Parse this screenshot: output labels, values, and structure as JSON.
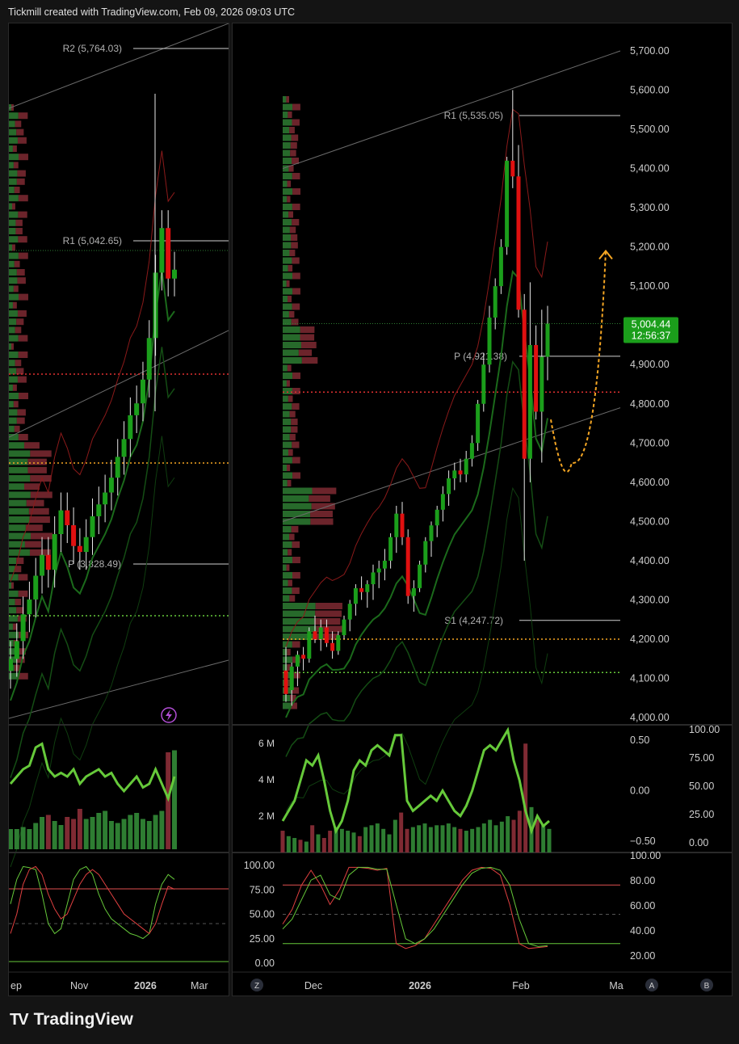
{
  "header": {
    "text": "Tickmill created with TradingView.com, Feb 09, 2026 09:03 UTC"
  },
  "brand": {
    "logo": "TV",
    "name": "TradingView"
  },
  "colors": {
    "up": "#1b9e1b",
    "down": "#e01010",
    "volume_up": "#2e7d32",
    "volume_down": "#7f2a33",
    "oscillator_line": "#66c93a",
    "projection": "#f5a623",
    "ref_red": "#e03030",
    "ref_orange": "#f5a623",
    "ref_green": "#66c93a"
  },
  "left_chart": {
    "pivots": [
      {
        "label": "R2 (5,764.03)",
        "value": 5764.03
      },
      {
        "label": "R1 (5,042.65)",
        "value": 5042.65
      },
      {
        "label": "P (3,828.49)",
        "value": 3828.49
      }
    ],
    "x_labels": [
      "ep",
      "Nov",
      "2026",
      "Mar"
    ],
    "stoch_levels": [
      "80",
      "50",
      "20"
    ],
    "event_icon": "lightning-icon"
  },
  "right_chart": {
    "price_axis": [
      "5,700.00",
      "5,600.00",
      "5,500.00",
      "5,400.00",
      "5,300.00",
      "5,200.00",
      "5,100.00",
      "5,000.00",
      "4,900.00",
      "4,800.00",
      "4,700.00",
      "4,600.00",
      "4,500.00",
      "4,400.00",
      "4,300.00",
      "4,200.00",
      "4,100.00",
      "4,000.00"
    ],
    "last_price": "5,004.44",
    "countdown": "12:56:37",
    "pivots": [
      {
        "label": "R1 (5,535.05)",
        "value": 5535.05
      },
      {
        "label": "P (4,921.38)",
        "value": 4921.38
      },
      {
        "label": "S1 (4,247.72)",
        "value": 4247.72
      }
    ],
    "volume_axis": [
      "6 M",
      "4 M",
      "2 M"
    ],
    "osc_axis_left": [
      "0.50",
      "0.00",
      "−0.50"
    ],
    "osc_axis_right": [
      "100.00",
      "75.00",
      "50.00",
      "25.00",
      "0.00"
    ],
    "stoch_axis_left": [
      "100.00",
      "75.00",
      "50.00",
      "25.00",
      "0.00"
    ],
    "stoch_axis_right": [
      "100.00",
      "80.00",
      "60.00",
      "40.00",
      "20.00"
    ],
    "x_labels": [
      "Dec",
      "2026",
      "Feb",
      "Ma"
    ],
    "footer_buttons": [
      "Z",
      "A",
      "B"
    ]
  },
  "chart_data": [
    {
      "type": "candlestick",
      "panel": "right",
      "title": "",
      "ylim": [
        4000,
        5750
      ],
      "last_price": 5004.44,
      "ohlc": [
        [
          4120,
          4180,
          4040,
          4060
        ],
        [
          4070,
          4140,
          4030,
          4130
        ],
        [
          4130,
          4170,
          4080,
          4160
        ],
        [
          4160,
          4180,
          4120,
          4150
        ],
        [
          4150,
          4230,
          4140,
          4220
        ],
        [
          4220,
          4260,
          4190,
          4200
        ],
        [
          4200,
          4250,
          4170,
          4230
        ],
        [
          4230,
          4250,
          4180,
          4190
        ],
        [
          4190,
          4220,
          4150,
          4170
        ],
        [
          4170,
          4220,
          4160,
          4210
        ],
        [
          4210,
          4260,
          4200,
          4250
        ],
        [
          4250,
          4300,
          4220,
          4290
        ],
        [
          4290,
          4340,
          4260,
          4330
        ],
        [
          4330,
          4360,
          4300,
          4320
        ],
        [
          4320,
          4350,
          4280,
          4340
        ],
        [
          4340,
          4390,
          4300,
          4370
        ],
        [
          4370,
          4400,
          4330,
          4380
        ],
        [
          4380,
          4430,
          4350,
          4400
        ],
        [
          4400,
          4470,
          4380,
          4460
        ],
        [
          4460,
          4540,
          4420,
          4520
        ],
        [
          4520,
          4550,
          4440,
          4460
        ],
        [
          4460,
          4480,
          4290,
          4310
        ],
        [
          4310,
          4350,
          4270,
          4330
        ],
        [
          4330,
          4400,
          4320,
          4390
        ],
        [
          4390,
          4460,
          4370,
          4450
        ],
        [
          4450,
          4500,
          4410,
          4490
        ],
        [
          4490,
          4540,
          4460,
          4530
        ],
        [
          4530,
          4590,
          4500,
          4570
        ],
        [
          4570,
          4630,
          4540,
          4610
        ],
        [
          4610,
          4650,
          4580,
          4630
        ],
        [
          4630,
          4660,
          4600,
          4620
        ],
        [
          4620,
          4680,
          4600,
          4660
        ],
        [
          4660,
          4720,
          4640,
          4700
        ],
        [
          4700,
          4810,
          4680,
          4800
        ],
        [
          4800,
          4930,
          4780,
          4900
        ],
        [
          4900,
          5050,
          4880,
          5020
        ],
        [
          5020,
          5120,
          4990,
          5100
        ],
        [
          5100,
          5220,
          5080,
          5200
        ],
        [
          5200,
          5430,
          5180,
          5420
        ],
        [
          5420,
          5600,
          5350,
          5380
        ],
        [
          5380,
          5460,
          5020,
          5040
        ],
        [
          5040,
          5080,
          4400,
          4660
        ],
        [
          4660,
          5110,
          4600,
          4950
        ],
        [
          4950,
          5000,
          4760,
          4780
        ],
        [
          4780,
          5040,
          4650,
          4920
        ],
        [
          4920,
          5050,
          4860,
          5004.44
        ]
      ],
      "projection": {
        "from": 4760,
        "low": 4650,
        "to": 5190
      }
    },
    {
      "type": "bar",
      "panel": "right-volume",
      "ylabel": "",
      "ylim": [
        0,
        6500000
      ],
      "values": [
        1.2,
        0.9,
        0.8,
        0.7,
        0.6,
        1.5,
        1.0,
        0.8,
        1.2,
        1.4,
        1.3,
        1.2,
        1.1,
        0.9,
        1.4,
        1.5,
        1.6,
        1.3,
        1.0,
        1.8,
        2.2,
        1.3,
        1.4,
        1.5,
        1.6,
        1.4,
        1.5,
        1.5,
        1.6,
        1.4,
        1.3,
        1.2,
        1.3,
        1.4,
        1.6,
        1.8,
        1.5,
        1.7,
        2.0,
        1.8,
        2.3,
        6.0,
        2.5,
        1.8,
        1.5,
        1.3
      ],
      "value_unit": "M"
    },
    {
      "type": "line",
      "panel": "right-oscillator",
      "ylim": [
        -0.6,
        0.6
      ],
      "values": [
        -0.3,
        -0.2,
        -0.1,
        0.1,
        0.3,
        0.25,
        0.35,
        0.1,
        -0.2,
        -0.4,
        -0.3,
        -0.1,
        0.2,
        0.3,
        0.25,
        0.4,
        0.45,
        0.4,
        0.35,
        0.55,
        0.55,
        -0.1,
        -0.2,
        -0.15,
        -0.1,
        -0.05,
        -0.1,
        0.0,
        -0.1,
        -0.2,
        -0.25,
        -0.15,
        0.0,
        0.2,
        0.4,
        0.45,
        0.4,
        0.5,
        0.6,
        0.3,
        0.1,
        -0.2,
        -0.4,
        -0.25,
        -0.35,
        -0.3
      ]
    },
    {
      "type": "line",
      "panel": "right-stochastic",
      "ylim": [
        0,
        100
      ],
      "series": [
        {
          "values": [
            40,
            55,
            80,
            95,
            80,
            60,
            75,
            98,
            98,
            97,
            95,
            97,
            20,
            15,
            18,
            25,
            40,
            55,
            70,
            85,
            95,
            98,
            97,
            90,
            60,
            20,
            15,
            16,
            17
          ]
        },
        {
          "values": [
            35,
            45,
            65,
            85,
            90,
            70,
            65,
            90,
            98,
            98,
            96,
            96,
            60,
            25,
            20,
            25,
            35,
            50,
            65,
            80,
            92,
            97,
            98,
            95,
            80,
            45,
            20,
            17,
            18
          ]
        }
      ]
    }
  ]
}
